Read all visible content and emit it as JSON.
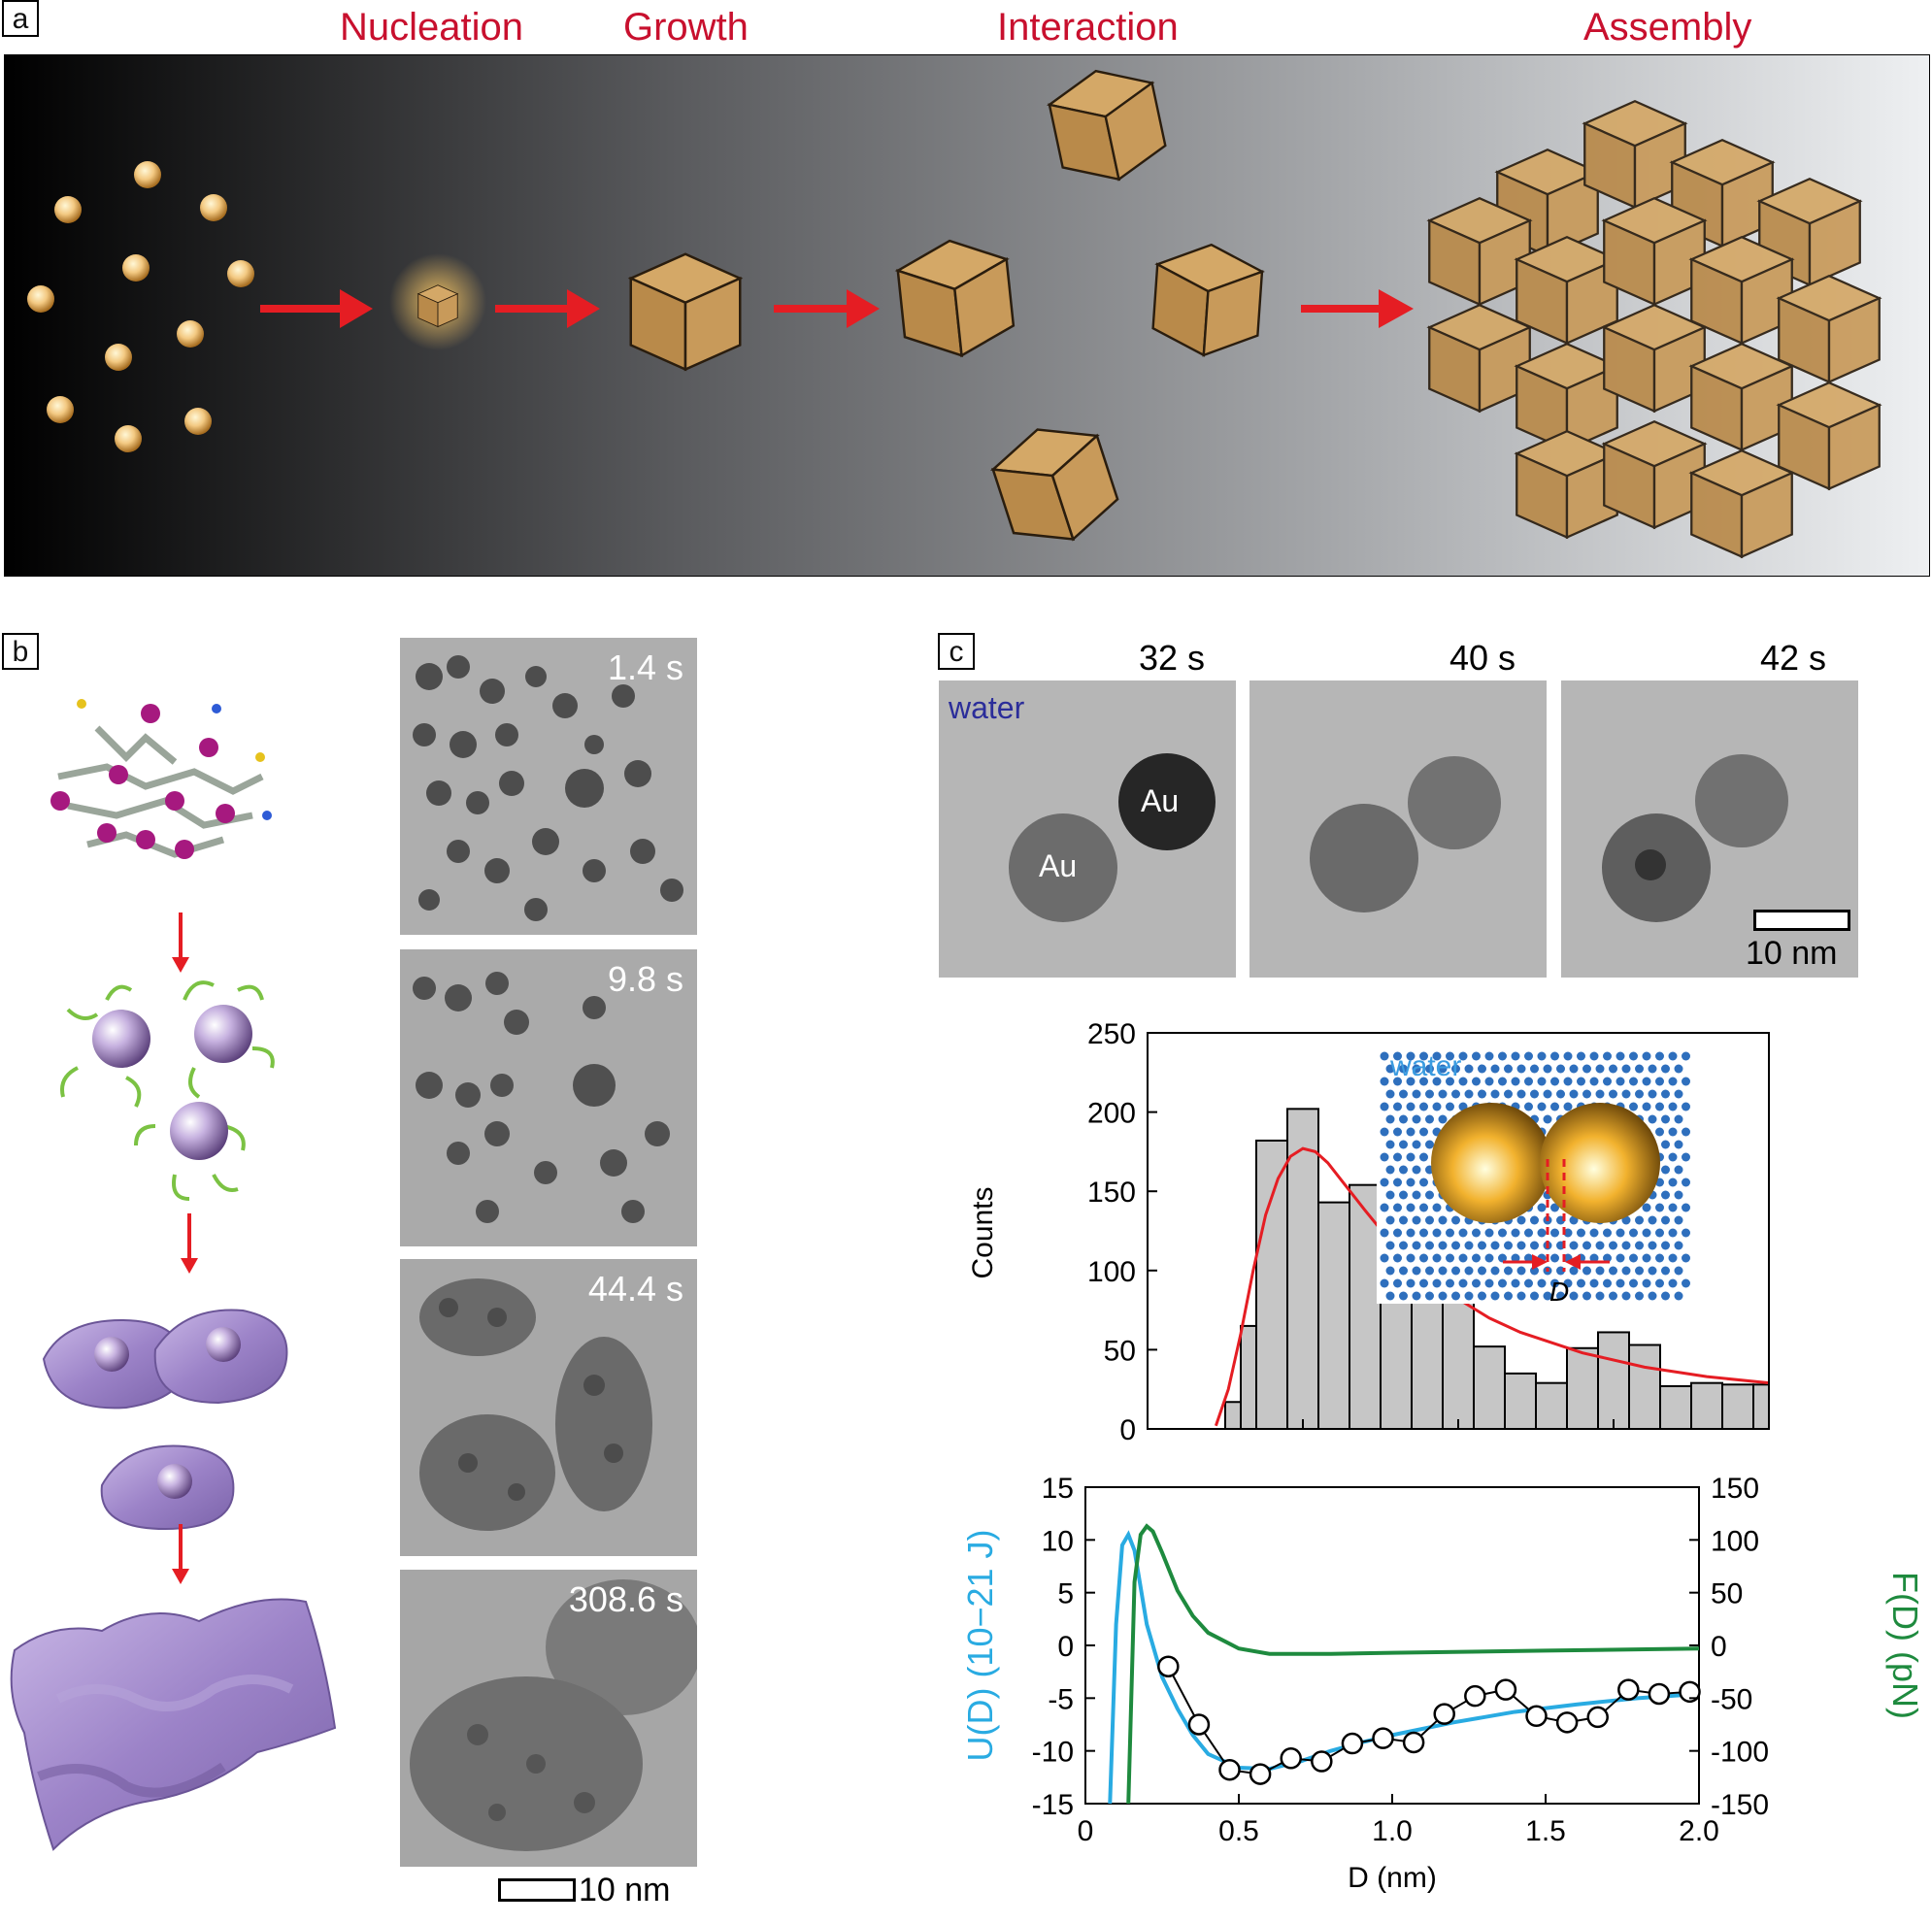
{
  "panel_a": {
    "label": "a",
    "stages": [
      "Nucleation",
      "Growth",
      "Interaction",
      "Assembly"
    ]
  },
  "panel_b": {
    "label": "b",
    "frames": [
      {
        "time": "1.4 s"
      },
      {
        "time": "9.8 s"
      },
      {
        "time": "44.4 s"
      },
      {
        "time": "308.6 s"
      }
    ],
    "scalebar": "10 nm"
  },
  "panel_c": {
    "label": "c",
    "frames": [
      {
        "time": "32 s"
      },
      {
        "time": "40 s"
      },
      {
        "time": "42 s"
      }
    ],
    "water_label": "water",
    "particle_label": "Au",
    "scalebar": "10 nm",
    "inset_water_label": "water",
    "inset_D_label": "D"
  },
  "chart_data": [
    {
      "type": "bar",
      "ylabel": "Counts",
      "xlim": [
        0,
        2.0
      ],
      "ylim": [
        0,
        250
      ],
      "yticks": [
        0,
        50,
        100,
        150,
        200,
        250
      ],
      "bins": [
        {
          "x0": 0.25,
          "x1": 0.3,
          "count": 17
        },
        {
          "x0": 0.3,
          "x1": 0.35,
          "count": 65
        },
        {
          "x0": 0.35,
          "x1": 0.45,
          "count": 182
        },
        {
          "x0": 0.45,
          "x1": 0.55,
          "count": 202
        },
        {
          "x0": 0.55,
          "x1": 0.65,
          "count": 143
        },
        {
          "x0": 0.65,
          "x1": 0.75,
          "count": 154
        },
        {
          "x0": 0.75,
          "x1": 0.85,
          "count": 98
        },
        {
          "x0": 0.85,
          "x1": 0.95,
          "count": 83
        },
        {
          "x0": 0.95,
          "x1": 1.05,
          "count": 89
        },
        {
          "x0": 1.05,
          "x1": 1.15,
          "count": 52
        },
        {
          "x0": 1.15,
          "x1": 1.25,
          "count": 35
        },
        {
          "x0": 1.25,
          "x1": 1.35,
          "count": 29
        },
        {
          "x0": 1.35,
          "x1": 1.45,
          "count": 51
        },
        {
          "x0": 1.45,
          "x1": 1.55,
          "count": 61
        },
        {
          "x0": 1.55,
          "x1": 1.65,
          "count": 53
        },
        {
          "x0": 1.65,
          "x1": 1.75,
          "count": 27
        },
        {
          "x0": 1.75,
          "x1": 1.85,
          "count": 29
        },
        {
          "x0": 1.85,
          "x1": 1.95,
          "count": 28
        },
        {
          "x0": 1.95,
          "x1": 2.0,
          "count": 28
        }
      ],
      "fit": {
        "x": [
          0.22,
          0.26,
          0.3,
          0.34,
          0.38,
          0.42,
          0.46,
          0.5,
          0.54,
          0.58,
          0.62,
          0.7,
          0.8,
          0.9,
          1.0,
          1.1,
          1.2,
          1.4,
          1.6,
          1.8,
          2.0
        ],
        "y": [
          2,
          25,
          60,
          100,
          135,
          158,
          172,
          177,
          175,
          168,
          158,
          138,
          114,
          96,
          82,
          70,
          61,
          48,
          39,
          33,
          29
        ]
      }
    },
    {
      "type": "line",
      "xlabel": "D (nm)",
      "ylabel_left": "U(D) (10−21 J)",
      "ylabel_right": "F(D) (pN)",
      "xlim": [
        0,
        2.0
      ],
      "ylim_left": [
        -15,
        15
      ],
      "ylim_right": [
        -150,
        150
      ],
      "xticks": [
        "0",
        "0.5",
        "1.0",
        "1.5",
        "2.0"
      ],
      "yticks_left": [
        15,
        10,
        5,
        0,
        -5,
        -10,
        -15
      ],
      "yticks_right": [
        150,
        100,
        50,
        0,
        -50,
        -100,
        -150
      ],
      "series": [
        {
          "axis": "left",
          "color": "#29abe2",
          "x": [
            0.08,
            0.1,
            0.12,
            0.14,
            0.16,
            0.2,
            0.25,
            0.3,
            0.35,
            0.4,
            0.5,
            0.6,
            0.7,
            0.8,
            0.9,
            1.0,
            1.2,
            1.4,
            1.6,
            1.8,
            2.0
          ],
          "y": [
            -15,
            2,
            9.5,
            10.5,
            9,
            2,
            -3,
            -6,
            -8.5,
            -10.3,
            -11.6,
            -11.7,
            -11.0,
            -10.0,
            -9.2,
            -8.5,
            -7.3,
            -6.3,
            -5.6,
            -5.0,
            -4.6
          ]
        },
        {
          "axis": "right",
          "color": "#1e8a3e",
          "x": [
            0.14,
            0.16,
            0.18,
            0.2,
            0.22,
            0.25,
            0.3,
            0.35,
            0.4,
            0.5,
            0.6,
            0.8,
            1.0,
            1.5,
            2.0
          ],
          "y": [
            -150,
            60,
            105,
            113,
            108,
            88,
            52,
            28,
            12,
            -3,
            -8,
            -8,
            -7,
            -5,
            -3
          ]
        },
        {
          "axis": "left",
          "type": "scatter",
          "marker": "open-circle",
          "color": "#000000",
          "x": [
            0.27,
            0.37,
            0.47,
            0.57,
            0.67,
            0.77,
            0.87,
            0.97,
            1.07,
            1.17,
            1.27,
            1.37,
            1.47,
            1.57,
            1.67,
            1.77,
            1.87,
            1.97
          ],
          "y": [
            -2.0,
            -7.5,
            -11.8,
            -12.2,
            -10.7,
            -11.0,
            -9.3,
            -8.8,
            -9.2,
            -6.5,
            -4.8,
            -4.2,
            -6.7,
            -7.3,
            -6.8,
            -4.2,
            -4.6,
            -4.4
          ]
        }
      ]
    }
  ]
}
